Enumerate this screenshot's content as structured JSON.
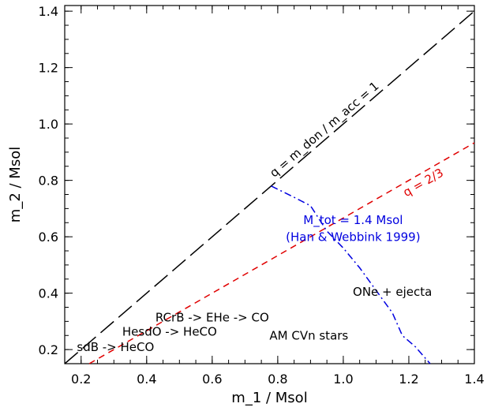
{
  "chart_data": {
    "type": "line",
    "xlabel": "m_1 / Msol",
    "ylabel": "m_2 / Msol",
    "xlim": [
      0.15,
      1.4
    ],
    "ylim": [
      0.15,
      1.42
    ],
    "x_ticks": [
      0.2,
      0.4,
      0.6,
      0.8,
      1.0,
      1.2,
      1.4
    ],
    "x_tick_labels": [
      "0.2",
      "0.4",
      "0.6",
      "0.8",
      "1.0",
      "1.2",
      "1.4"
    ],
    "y_ticks": [
      0.2,
      0.4,
      0.6,
      0.8,
      1.0,
      1.2,
      1.4
    ],
    "y_tick_labels": [
      "0.2",
      "0.4",
      "0.6",
      "0.8",
      "1.0",
      "1.2",
      "1.4"
    ],
    "grid": false,
    "series": [
      {
        "color": "#000000",
        "style": "long-dash",
        "points": [
          [
            0.15,
            0.15
          ],
          [
            1.4,
            1.4
          ]
        ]
      },
      {
        "color": "#e00000",
        "style": "dash",
        "points": [
          [
            0.225,
            0.15
          ],
          [
            1.4,
            0.9333
          ]
        ]
      },
      {
        "color": "#0000e0",
        "style": "dash-dot",
        "points": [
          [
            0.78,
            0.78
          ],
          [
            0.85,
            0.74
          ],
          [
            0.9,
            0.71
          ],
          [
            0.95,
            0.62
          ],
          [
            1.0,
            0.56
          ],
          [
            1.05,
            0.49
          ],
          [
            1.1,
            0.41
          ],
          [
            1.15,
            0.33
          ],
          [
            1.18,
            0.25
          ],
          [
            1.22,
            0.21
          ],
          [
            1.265,
            0.15
          ]
        ]
      }
    ],
    "annotations": [
      {
        "text": "q = m_don / m_acc = 1",
        "x": 0.95,
        "y": 0.97,
        "color": "#000000"
      },
      {
        "text": "q = 2/3",
        "x": 1.25,
        "y": 0.78,
        "color": "#e00000"
      },
      {
        "text": "M_tot = 1.4 Msol",
        "x": 1.03,
        "y": 0.645,
        "color": "#0000e0"
      },
      {
        "text": "(Han & Webbink 1999)",
        "x": 1.03,
        "y": 0.585,
        "color": "#0000e0"
      },
      {
        "text": "ONe + ejecta",
        "x": 1.15,
        "y": 0.39,
        "color": "#000000"
      },
      {
        "text": "RCrB -> EHe -> CO",
        "x": 0.6,
        "y": 0.3,
        "color": "#000000"
      },
      {
        "text": "HesdO -> HeCO",
        "x": 0.47,
        "y": 0.25,
        "color": "#000000"
      },
      {
        "text": "AM CVn stars",
        "x": 0.895,
        "y": 0.235,
        "color": "#000000"
      },
      {
        "text": "sdB -> HeCO",
        "x": 0.305,
        "y": 0.195,
        "color": "#000000"
      }
    ]
  }
}
